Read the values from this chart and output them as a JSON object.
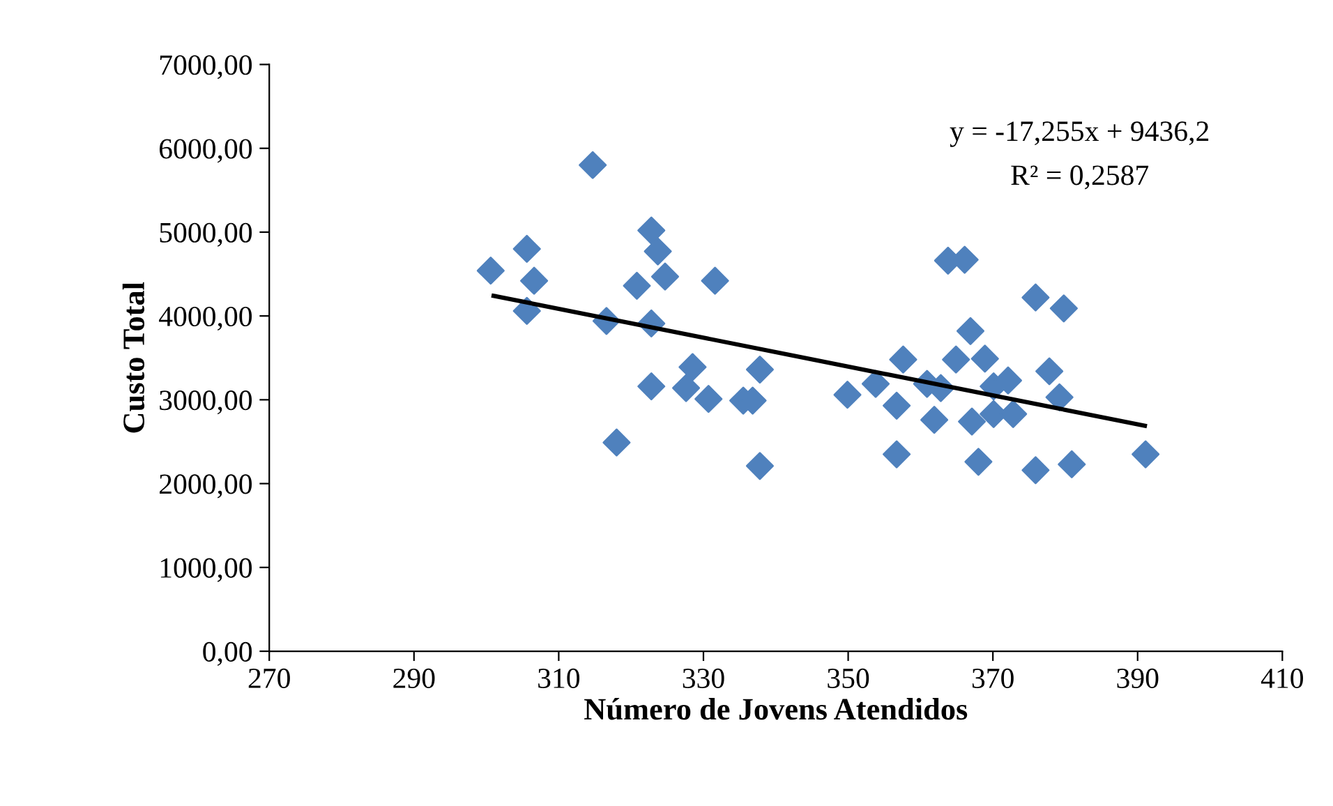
{
  "chart_data": {
    "type": "scatter",
    "xlabel": "Número de Jovens Atendidos",
    "ylabel": "Custo Total",
    "xlim": [
      270,
      410
    ],
    "xticks": [
      270,
      290,
      310,
      330,
      350,
      370,
      390,
      410
    ],
    "ylim": [
      0,
      7000
    ],
    "yticks": [
      {
        "value": 0,
        "label": "0,00"
      },
      {
        "value": 1000,
        "label": "1000,00"
      },
      {
        "value": 2000,
        "label": "2000,00"
      },
      {
        "value": 3000,
        "label": "3000,00"
      },
      {
        "value": 4000,
        "label": "4000,00"
      },
      {
        "value": 5000,
        "label": "5000,00"
      },
      {
        "value": 6000,
        "label": "6000,00"
      },
      {
        "value": 7000,
        "label": "7000,00"
      }
    ],
    "grid": false,
    "legend": false,
    "marker": "diamond",
    "annotations": [
      "y = -17,255x + 9436,2",
      "R² = 0,2587"
    ],
    "series": [
      {
        "color": "#4f81bd",
        "x": [
          314.7,
          305.6,
          300.6,
          306.6,
          305.6,
          322.8,
          323.7,
          324.7,
          320.8,
          331.6,
          316.6,
          322.8,
          328.5,
          322.8,
          327.6,
          330.7,
          335.5,
          336.8,
          337.8,
          318,
          337.8,
          363.8,
          366.1,
          375.9,
          379.8,
          366.9,
          357.6,
          364.9,
          368.9,
          377.8,
          349.9,
          353.8,
          360.9,
          362.8,
          370.1,
          372.1,
          379.2,
          356.7,
          361.9,
          367.1,
          370.1,
          372.8,
          356.7,
          368,
          375.9,
          380.9,
          391.1
        ],
        "values": [
          5800,
          4800,
          4540,
          4420,
          4060,
          5020,
          4770,
          4470,
          4360,
          4420,
          3940,
          3910,
          3390,
          3160,
          3140,
          3010,
          2990,
          2990,
          3360,
          2490,
          2210,
          4660,
          4670,
          4220,
          4090,
          3820,
          3480,
          3480,
          3490,
          3340,
          3060,
          3190,
          3190,
          3140,
          3160,
          3230,
          3030,
          2930,
          2760,
          2740,
          2830,
          2830,
          2350,
          2260,
          2160,
          2230,
          2350
        ]
      },
      {
        "type": "line",
        "color": "#000000",
        "marker": "none",
        "line_style": "solid",
        "x": [
          301,
          391
        ],
        "values": [
          4240,
          2690
        ]
      }
    ]
  }
}
